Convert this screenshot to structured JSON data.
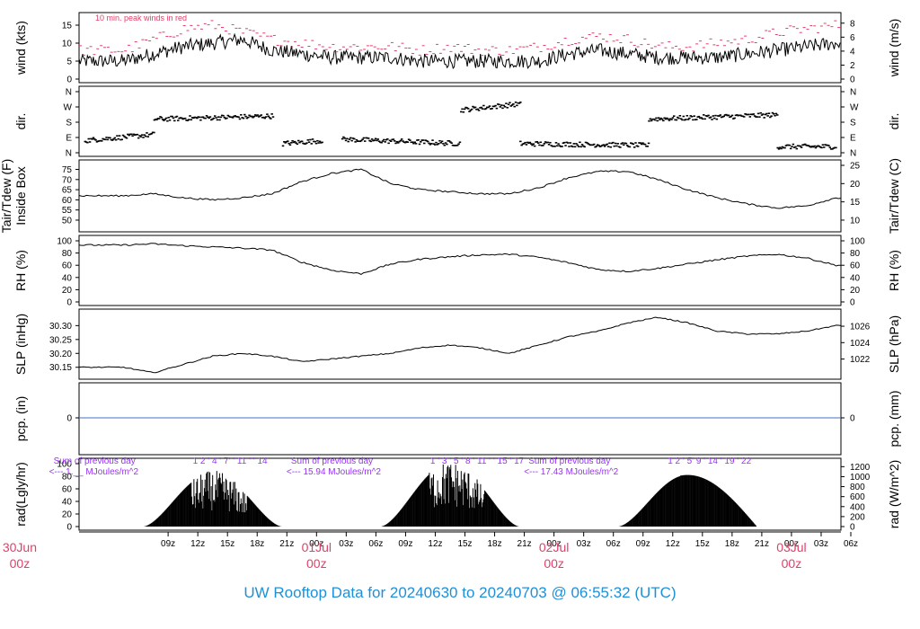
{
  "title": "UW Rooftop Data for 20240630  to  20240703 @ 06:55:32  (UTC)",
  "colors": {
    "red": "#e0406a",
    "blue": "#1f90d8",
    "purple": "#9b30ff",
    "precip": "#4472c4"
  },
  "chart_data": [
    {
      "panel": "wind",
      "type": "line",
      "ylabel_left": "wind (kts)",
      "ylabel_right": "wind (m/s)",
      "annotation": "10 min. peak winds in red",
      "left_ticks": [
        "0",
        "5",
        "10",
        "15"
      ],
      "right_ticks": [
        "0",
        "2",
        "4",
        "6",
        "8"
      ],
      "ylim": [
        0,
        17
      ],
      "x_hours": [
        0,
        3,
        6,
        9,
        12,
        15,
        18,
        21,
        24,
        27,
        30,
        33,
        36,
        39,
        42,
        45,
        48,
        51,
        54,
        57,
        60,
        63,
        66,
        69,
        72
      ],
      "mean_wind": [
        5,
        7,
        9,
        10,
        11,
        8,
        7,
        6,
        6,
        6,
        5,
        5,
        5,
        5,
        5,
        7,
        8,
        7,
        6,
        6,
        6,
        7,
        8,
        9,
        10
      ],
      "peak_wind": [
        8,
        11,
        14,
        15,
        13,
        11,
        10,
        9,
        9,
        9,
        8,
        9,
        8,
        8,
        9,
        11,
        12,
        11,
        9,
        9,
        10,
        11,
        13,
        14,
        15
      ]
    },
    {
      "panel": "dir",
      "type": "scatter",
      "ylabel_left": "dir.",
      "ylabel_right": "dir.",
      "left_ticks": [
        "N",
        "E",
        "S",
        "W",
        "N"
      ],
      "right_ticks": [
        "N",
        "E",
        "S",
        "W",
        "N"
      ]
    },
    {
      "panel": "temp",
      "type": "line",
      "ylabel_left": "Tair/Tdew (F)\nInside Box",
      "ylabel_right": "Tair/Tdew (C)",
      "left_ticks": [
        "50",
        "55",
        "60",
        "65",
        "70",
        "75"
      ],
      "right_ticks": [
        "10",
        "15",
        "20",
        "25"
      ],
      "ylim": [
        46,
        77
      ],
      "x_hours": [
        0,
        3,
        6,
        9,
        12,
        15,
        18,
        21,
        24,
        27,
        30,
        33,
        36,
        39,
        42,
        45,
        48,
        51,
        54,
        57,
        60,
        63,
        66,
        69,
        72
      ],
      "values": [
        62,
        63,
        61,
        60,
        61,
        63,
        69,
        73,
        75,
        68,
        65,
        64,
        63,
        63,
        66,
        71,
        74,
        74,
        70,
        65,
        61,
        58,
        56,
        57,
        61
      ]
    },
    {
      "panel": "rh",
      "type": "line",
      "ylabel_left": "RH (%)",
      "ylabel_right": "RH (%)",
      "left_ticks": [
        "0",
        "20",
        "40",
        "60",
        "80",
        "100"
      ],
      "right_ticks": [
        "0",
        "20",
        "40",
        "60",
        "80",
        "100"
      ],
      "ylim": [
        0,
        100
      ],
      "x_hours": [
        0,
        3,
        6,
        9,
        12,
        15,
        18,
        21,
        24,
        27,
        30,
        33,
        36,
        39,
        42,
        45,
        48,
        51,
        54,
        57,
        60,
        63,
        66,
        69,
        72
      ],
      "values": [
        93,
        95,
        92,
        90,
        88,
        85,
        65,
        52,
        46,
        62,
        70,
        74,
        77,
        78,
        73,
        64,
        53,
        50,
        55,
        62,
        69,
        75,
        78,
        72,
        60
      ]
    },
    {
      "panel": "slp",
      "type": "line",
      "ylabel_left": "SLP (inHg)",
      "ylabel_right": "SLP (hPa)",
      "left_ticks": [
        "30.15",
        "30.20",
        "30.25",
        "30.30"
      ],
      "right_ticks": [
        "1022",
        "1024",
        "1026"
      ],
      "ylim": [
        30.12,
        30.34
      ],
      "x_hours": [
        0,
        3,
        6,
        9,
        12,
        15,
        18,
        21,
        24,
        27,
        30,
        33,
        36,
        39,
        42,
        45,
        48,
        51,
        54,
        57,
        60,
        63,
        66,
        69,
        72
      ],
      "values": [
        30.15,
        30.13,
        30.16,
        30.19,
        30.2,
        30.19,
        30.17,
        30.18,
        30.19,
        30.2,
        30.22,
        30.23,
        30.22,
        30.2,
        30.23,
        30.26,
        30.28,
        30.31,
        30.33,
        30.31,
        30.28,
        30.27,
        30.27,
        30.28,
        30.3
      ]
    },
    {
      "panel": "pcp",
      "type": "line",
      "ylabel_left": "pcp. (in)",
      "ylabel_right": "pcp. (mm)",
      "left_ticks": [
        "0"
      ],
      "right_ticks": [
        "0"
      ],
      "values_constant": 0
    },
    {
      "panel": "rad",
      "type": "area",
      "ylabel_left": "rad(Lgly/hr)",
      "ylabel_right": "rad (W/m^2)",
      "left_ticks": [
        "0",
        "20",
        "40",
        "60",
        "80",
        "100"
      ],
      "right_ticks": [
        "0",
        "200",
        "400",
        "600",
        "800",
        "1000",
        "1200"
      ],
      "ylim": [
        0,
        100
      ],
      "days": [
        {
          "sum_label": "Sum of previous day",
          "sum_value": "<--- 1.__ MJoules/m^2",
          "hour_marks": "1    2 ' 4 '  7' '  11 ' ' 14",
          "start_h": 2,
          "end_h": 16,
          "peak": 85
        },
        {
          "sum_label": "Sum of previous day",
          "sum_value": "<--- 15.94 MJoules/m^2",
          "hour_marks": "1  '  3  ' 5 ' 8 '  11 ' '  15 '  17",
          "start_h": 26,
          "end_h": 40,
          "peak": 100
        },
        {
          "sum_label": "Sum of previous day",
          "sum_value": "<--- 17.43 MJoules/m^2",
          "hour_marks": "1   2 ' 5' 9 '  14 '  19 '  22",
          "start_h": 50,
          "end_h": 64,
          "peak": 82
        }
      ]
    }
  ],
  "x_axis": {
    "hour_ticks": [
      "09z",
      "12z",
      "15z",
      "18z",
      "21z",
      "00z",
      "03z",
      "06z",
      "09z",
      "12z",
      "15z",
      "18z",
      "21z",
      "00z",
      "03z",
      "06z",
      "09z",
      "12z",
      "15z",
      "18z",
      "21z",
      "00z",
      "03z",
      "06z"
    ],
    "day_labels": [
      {
        "day": "30Jun",
        "hour": "00z"
      },
      {
        "day": "01Jul",
        "hour": "00z"
      },
      {
        "day": "02Jul",
        "hour": "00z"
      },
      {
        "day": "03Jul",
        "hour": "00z"
      }
    ]
  }
}
